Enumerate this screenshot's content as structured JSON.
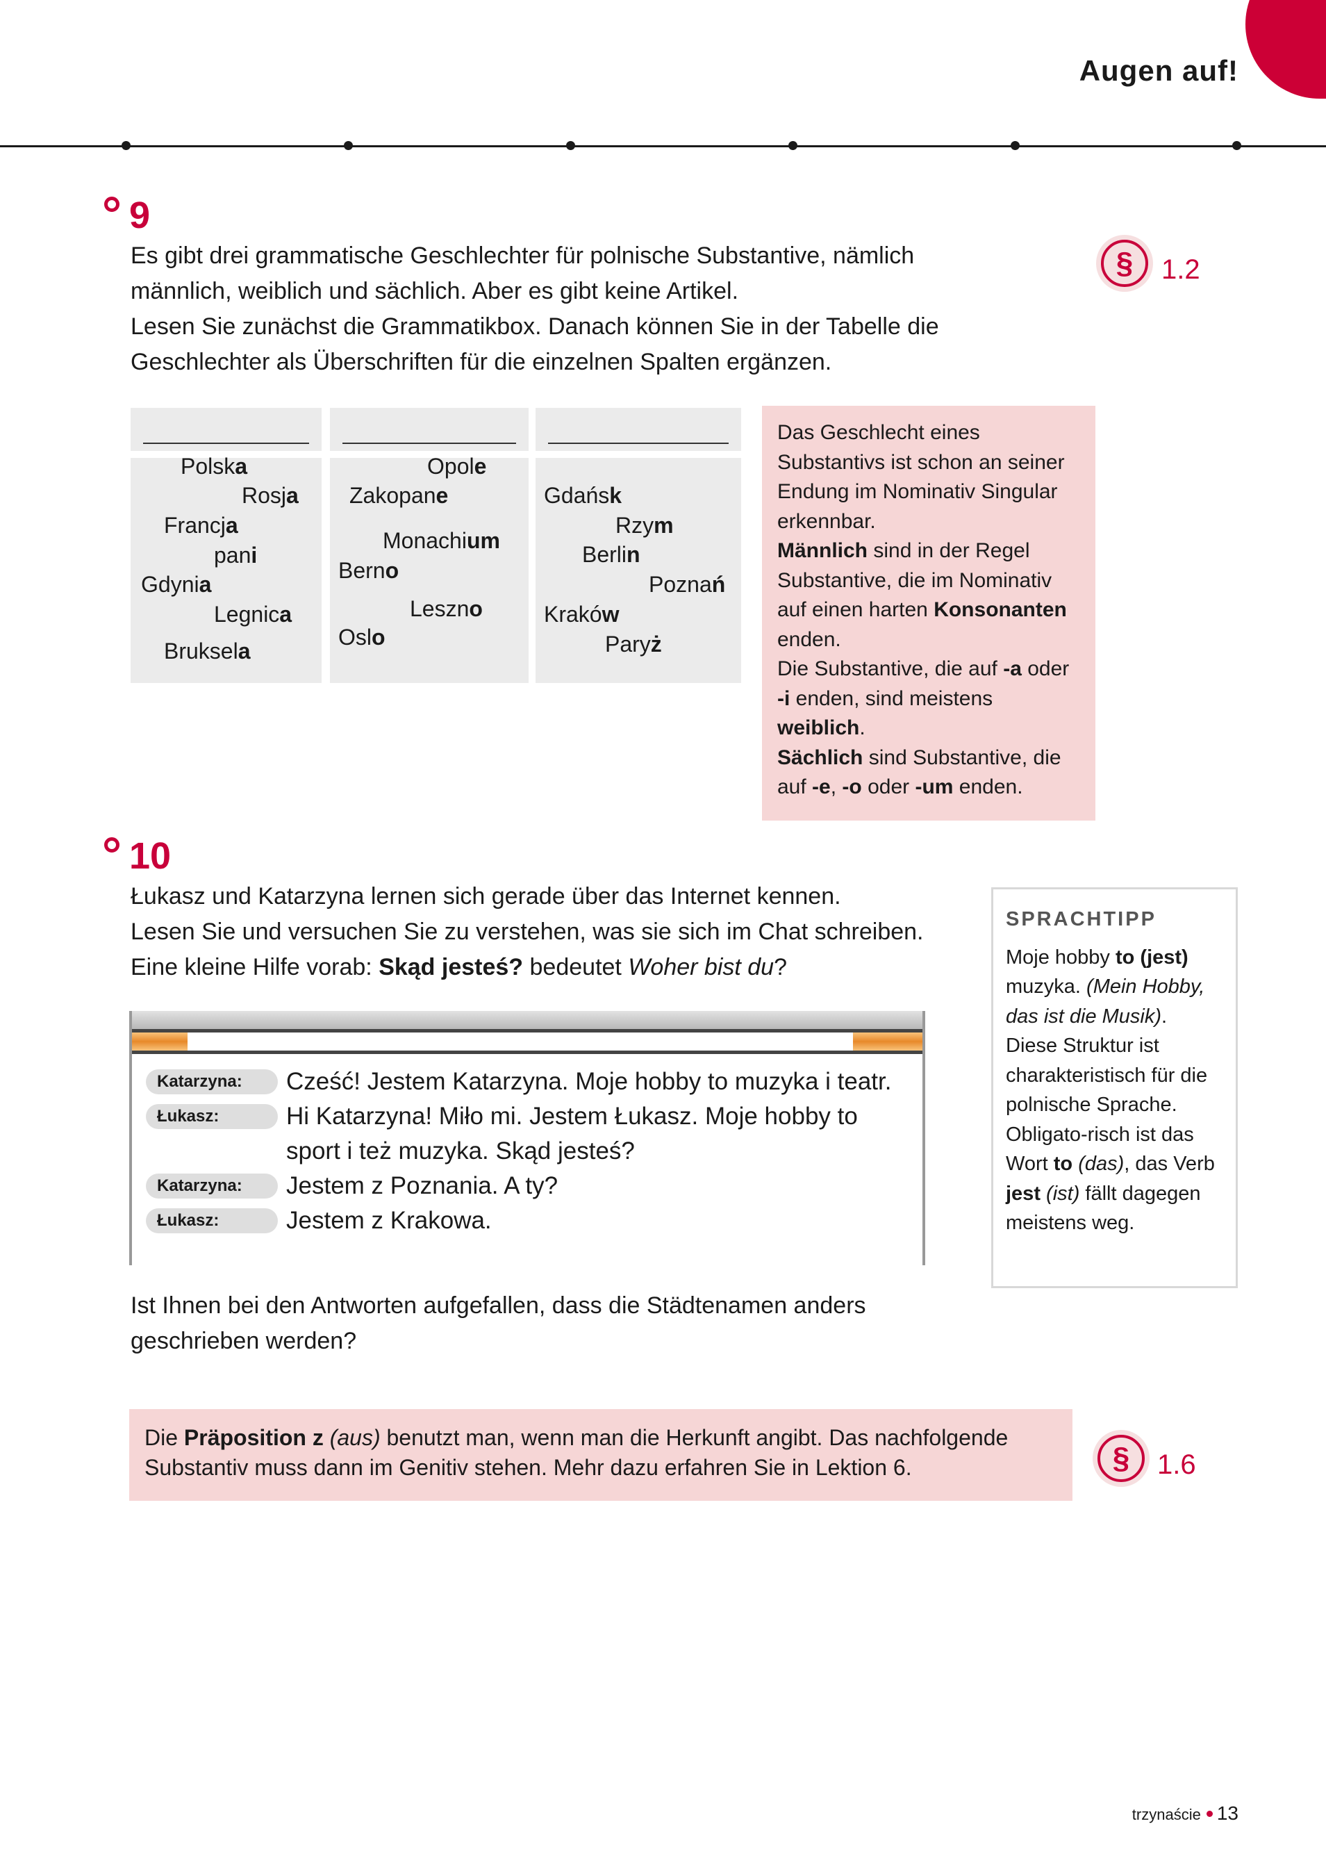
{
  "header": {
    "title": "Augen auf!",
    "accent_color": "#cc0036"
  },
  "exercise9": {
    "number": "9",
    "text": [
      [
        {
          "t": "Es gibt drei grammatische Geschlechter für polnische Substantive, nämlich"
        }
      ],
      [
        {
          "t": "männlich, weiblich und sächlich. Aber es gibt keine Artikel."
        }
      ],
      [
        {
          "t": "Lesen Sie zunächst die Grammatikbox. Danach können Sie in der Tabelle die"
        }
      ],
      [
        {
          "t": "Geschlechter als Überschriften für die einzelnen Spalten ergänzen."
        }
      ]
    ],
    "grammar_ref": {
      "icon": "paragraph-icon",
      "symbol": "§",
      "label": "1.2"
    },
    "columns": [
      {
        "heading": "",
        "cities": [
          {
            "stem": "Polsk",
            "ending": "a"
          },
          {
            "stem": "Rosj",
            "ending": "a"
          },
          {
            "stem": "Francj",
            "ending": "a"
          },
          {
            "stem": "pan",
            "ending": "i"
          },
          {
            "stem": "Gdyni",
            "ending": "a"
          },
          {
            "stem": "Legnic",
            "ending": "a"
          },
          {
            "stem": "Bruksel",
            "ending": "a"
          }
        ]
      },
      {
        "heading": "",
        "cities": [
          {
            "stem": "Opol",
            "ending": "e"
          },
          {
            "stem": "Zakopan",
            "ending": "e"
          },
          {
            "stem": "Monachi",
            "ending": "um"
          },
          {
            "stem": "Bern",
            "ending": "o"
          },
          {
            "stem": "Leszn",
            "ending": "o"
          },
          {
            "stem": "Osl",
            "ending": "o"
          }
        ]
      },
      {
        "heading": "",
        "cities": [
          {
            "stem": "Gdańs",
            "ending": "k"
          },
          {
            "stem": "Rzy",
            "ending": "m"
          },
          {
            "stem": "Berli",
            "ending": "n"
          },
          {
            "stem": "Pozna",
            "ending": "ń"
          },
          {
            "stem": "Krakó",
            "ending": "w"
          },
          {
            "stem": "Pary",
            "ending": "ż"
          }
        ]
      }
    ],
    "grammar_box": [
      [
        {
          "t": "Das Geschlecht eines Substantivs ist schon an seiner Endung im Nominativ Singular erkennbar."
        }
      ],
      [
        {
          "t": "Männlich",
          "b": true
        },
        {
          "t": " sind in der Regel Substantive, die im Nominativ auf einen harten "
        },
        {
          "t": "Konsonanten",
          "b": true
        },
        {
          "t": " enden."
        }
      ],
      [
        {
          "t": "Die Substantive, die auf "
        },
        {
          "t": "-a",
          "b": true
        },
        {
          "t": " oder "
        },
        {
          "t": "-i",
          "b": true
        },
        {
          "t": " enden, sind meistens "
        },
        {
          "t": "weiblich",
          "b": true
        },
        {
          "t": "."
        }
      ],
      [
        {
          "t": "Sächlich",
          "b": true
        },
        {
          "t": " sind Substantive, die auf "
        },
        {
          "t": "-e",
          "b": true
        },
        {
          "t": ", "
        },
        {
          "t": "-o",
          "b": true
        },
        {
          "t": " oder "
        },
        {
          "t": "-um",
          "b": true
        },
        {
          "t": " enden."
        }
      ]
    ]
  },
  "exercise10": {
    "number": "10",
    "text": [
      [
        {
          "t": "Łukasz und Katarzyna lernen sich gerade über das Internet kennen."
        }
      ],
      [
        {
          "t": "Lesen Sie und versuchen Sie zu verstehen, was sie sich im Chat schreiben."
        }
      ],
      [
        {
          "t": "Eine kleine Hilfe vorab: "
        },
        {
          "t": "Skąd jesteś?",
          "b": true
        },
        {
          "t": " bedeutet "
        },
        {
          "t": "Woher bist du",
          "i": true
        },
        {
          "t": "?"
        }
      ]
    ],
    "chat": [
      {
        "speaker": "Katarzyna:",
        "message": "Cześć! Jestem Katarzyna. Moje hobby to muzyka i teatr."
      },
      {
        "speaker": "Łukasz:",
        "message": "Hi Katarzyna! Miło mi. Jestem Łukasz. Moje hobby to sport i też muzyka. Skąd jesteś?"
      },
      {
        "speaker": "Katarzyna:",
        "message": "Jestem z Poznania. A ty?"
      },
      {
        "speaker": "Łukasz:",
        "message": "Jestem z Krakowa."
      }
    ],
    "question": [
      [
        {
          "t": "Ist Ihnen bei den Antworten aufgefallen, dass die Städtenamen anders"
        }
      ],
      [
        {
          "t": "geschrieben werden?"
        }
      ]
    ],
    "sprachtipp": {
      "heading": "SPRACHTIPP",
      "text": [
        [
          {
            "t": "Moje hobby "
          },
          {
            "t": "to (jest)",
            "b": true
          },
          {
            "t": " muzyka. "
          },
          {
            "t": "(Mein Hobby, das ist die Musik)",
            "i": true
          },
          {
            "t": ". Diese Struktur ist charakteristisch für die polnische Sprache. Obligato-risch ist das Wort "
          },
          {
            "t": "to",
            "b": true
          },
          {
            "t": " "
          },
          {
            "t": "(das)",
            "i": true
          },
          {
            "t": ", das Verb "
          },
          {
            "t": "jest",
            "b": true
          },
          {
            "t": " "
          },
          {
            "t": "(ist)",
            "i": true
          },
          {
            "t": " fällt dagegen meistens weg."
          }
        ]
      ]
    },
    "info_box": [
      [
        {
          "t": "Die "
        },
        {
          "t": "Präposition z",
          "b": true
        },
        {
          "t": " "
        },
        {
          "t": "(aus)",
          "i": true
        },
        {
          "t": " benutzt man, wenn man die Herkunft angibt. Das nachfolgende Substantiv muss dann im Genitiv stehen. Mehr dazu erfahren Sie in Lektion 6."
        }
      ]
    ],
    "grammar_ref": {
      "icon": "paragraph-icon",
      "symbol": "§",
      "label": "1.6"
    }
  },
  "footer": {
    "page_word": "trzynaście",
    "page_number": "13"
  }
}
